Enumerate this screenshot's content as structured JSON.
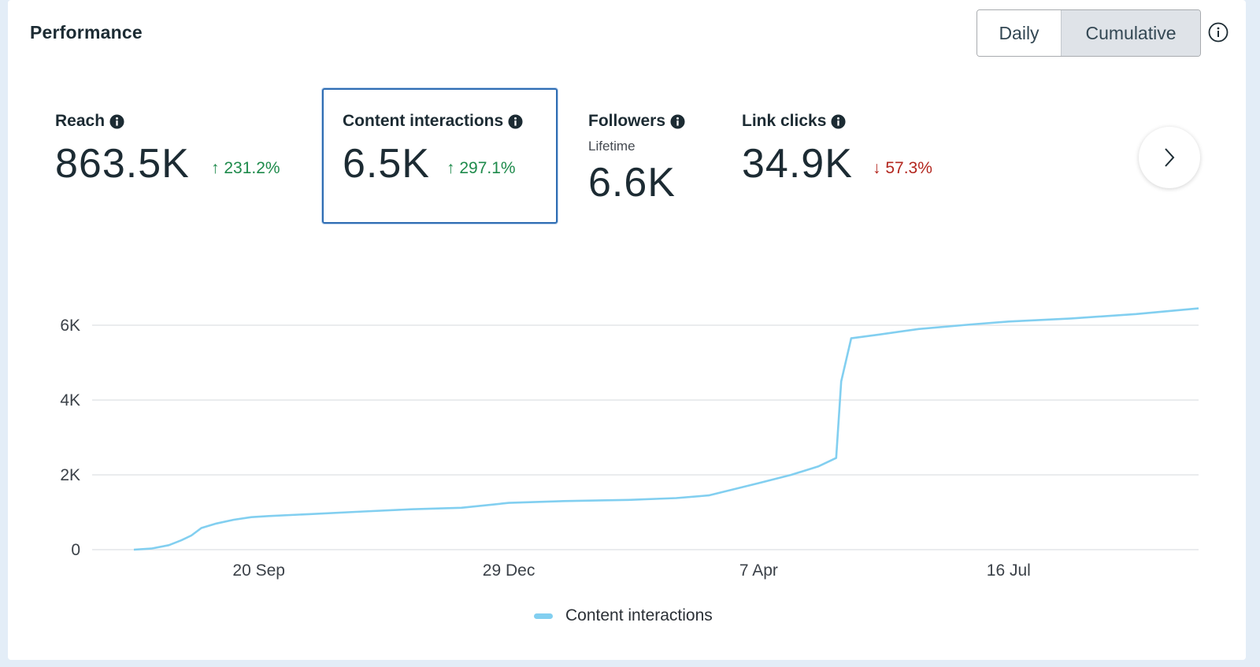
{
  "header": {
    "title": "Performance"
  },
  "toggle": {
    "daily": "Daily",
    "cumulative": "Cumulative",
    "selected": "Cumulative"
  },
  "metrics": [
    {
      "label": "Reach",
      "value": "863.5K",
      "change": "231.2%",
      "direction": "up",
      "selected": false
    },
    {
      "label": "Content interactions",
      "value": "6.5K",
      "change": "297.1%",
      "direction": "up",
      "selected": true
    },
    {
      "label": "Followers",
      "sub": "Lifetime",
      "value": "6.6K",
      "selected": false
    },
    {
      "label": "Link clicks",
      "value": "34.9K",
      "change": "57.3%",
      "direction": "down",
      "selected": false
    }
  ],
  "icons": {
    "info": "info-filled-icon",
    "help": "info-outline-icon",
    "next": "chevron-right-icon",
    "up": "arrow-up-icon",
    "down": "arrow-down-icon"
  },
  "colors": {
    "line": "#82cff0",
    "selected_border": "#2f6db3",
    "up": "#1e8a4b",
    "down": "#b3261e"
  },
  "chart_data": {
    "type": "line",
    "title": "",
    "xlabel": "",
    "ylabel": "",
    "ylim": [
      0,
      6000
    ],
    "yticks": [
      0,
      2000,
      4000,
      6000
    ],
    "ytick_labels": [
      "0",
      "2K",
      "4K",
      "6K"
    ],
    "xticks": [
      "2023-09-20",
      "2023-12-29",
      "2024-04-07",
      "2024-07-16"
    ],
    "xtick_labels": [
      "20 Sep",
      "29 Dec",
      "7 Apr",
      "16 Jul"
    ],
    "xlim": [
      "2023-08-01",
      "2024-09-30"
    ],
    "grid": true,
    "legend_position": "bottom-center",
    "series": [
      {
        "name": "Content interactions",
        "x": [
          "2023-08-01",
          "2023-08-08",
          "2023-08-15",
          "2023-08-20",
          "2023-08-24",
          "2023-08-28",
          "2023-09-03",
          "2023-09-10",
          "2023-09-17",
          "2023-09-24",
          "2023-10-10",
          "2023-11-01",
          "2023-11-20",
          "2023-12-10",
          "2023-12-29",
          "2024-01-20",
          "2024-02-15",
          "2024-03-05",
          "2024-03-18",
          "2024-04-07",
          "2024-04-20",
          "2024-05-01",
          "2024-05-08",
          "2024-05-10",
          "2024-05-14",
          "2024-05-25",
          "2024-06-10",
          "2024-07-01",
          "2024-07-16",
          "2024-08-10",
          "2024-09-05",
          "2024-09-30"
        ],
        "y": [
          0,
          30,
          120,
          250,
          380,
          580,
          700,
          800,
          870,
          900,
          950,
          1020,
          1080,
          1120,
          1250,
          1300,
          1330,
          1380,
          1450,
          1780,
          2000,
          2230,
          2450,
          4500,
          5650,
          5750,
          5900,
          6020,
          6100,
          6180,
          6300,
          6450
        ]
      }
    ]
  }
}
